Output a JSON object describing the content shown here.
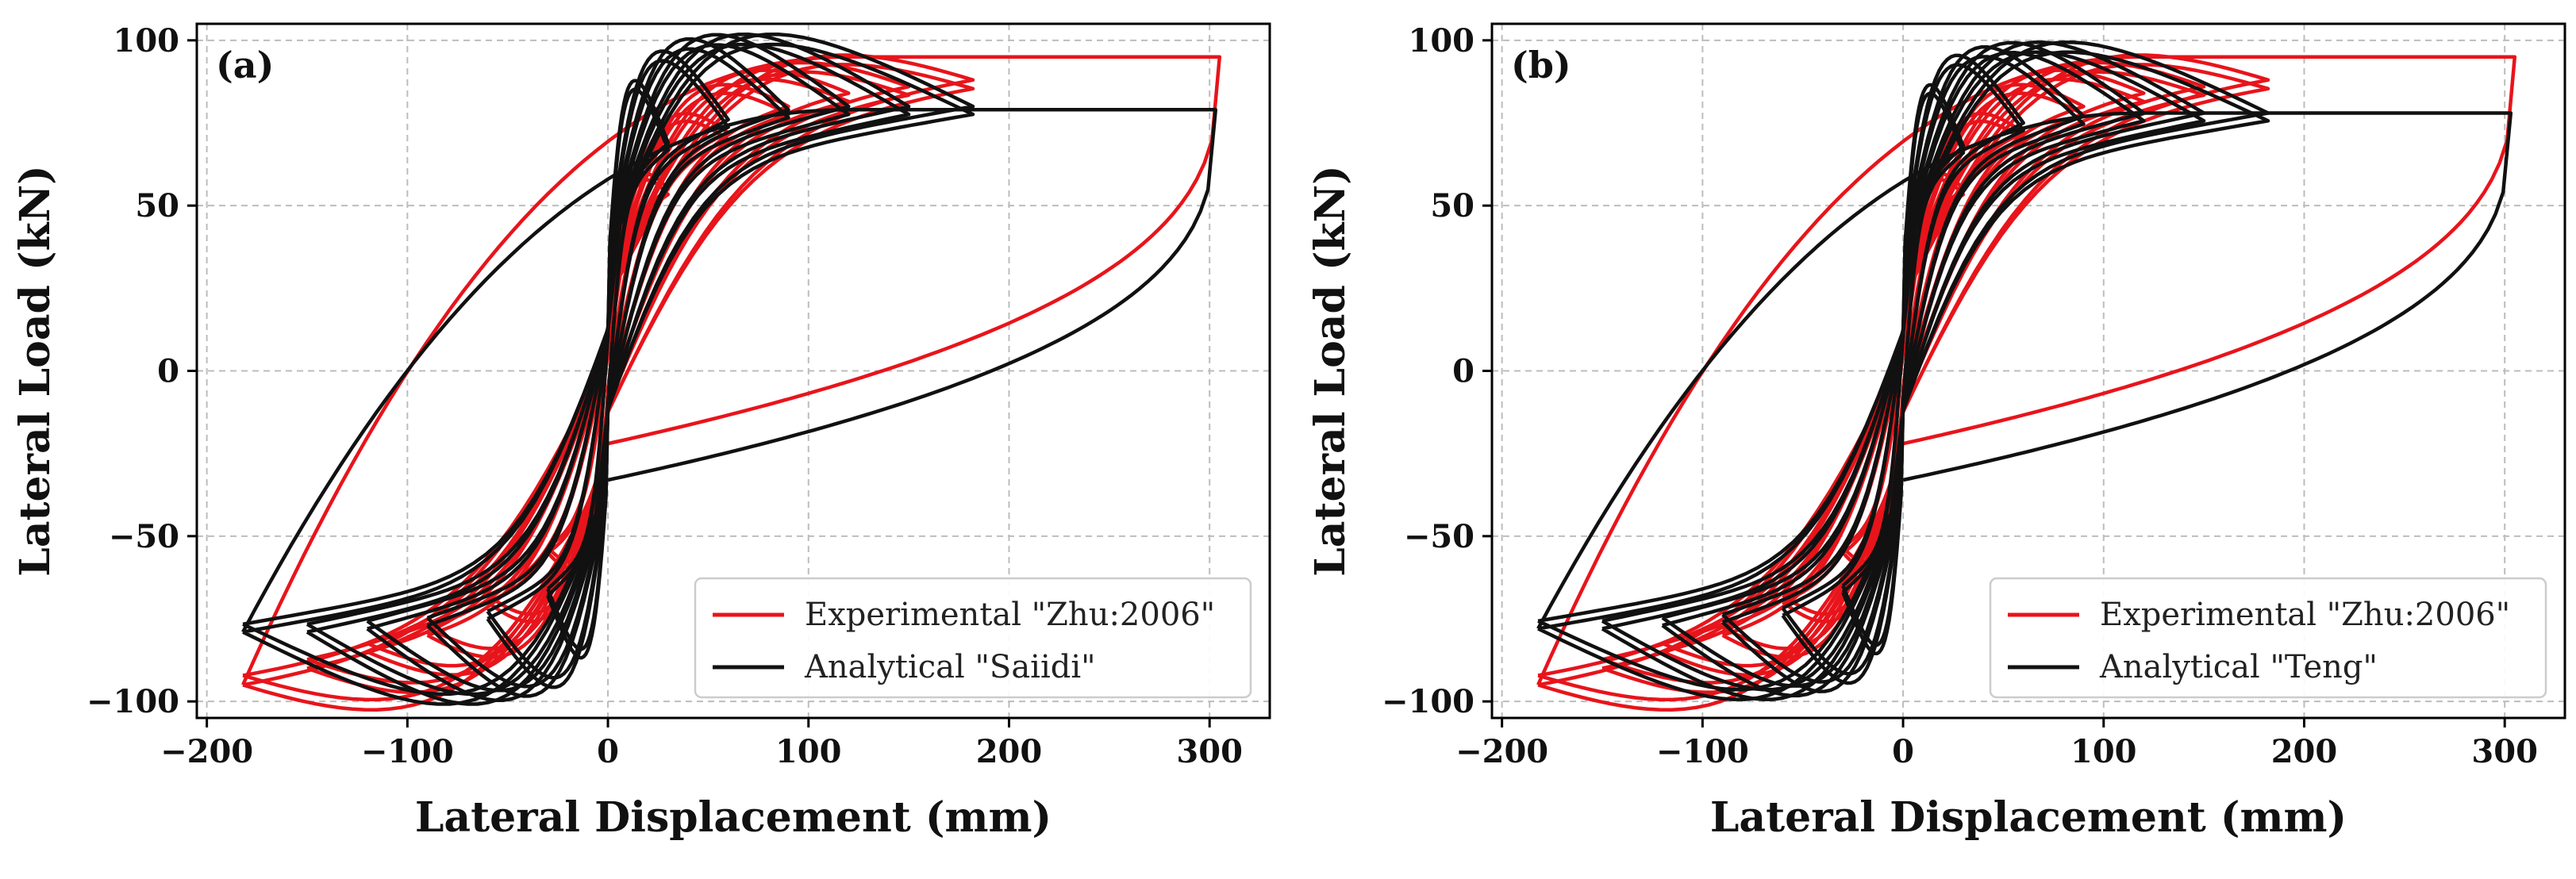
{
  "chart_data": [
    {
      "type": "line",
      "panel_label": "(a)",
      "xlabel": "Lateral Displacement (mm)",
      "ylabel": "Lateral Load (kN)",
      "xlim": [
        -205,
        330
      ],
      "ylim": [
        -105,
        105
      ],
      "xticks": [
        -200,
        -100,
        0,
        100,
        200,
        300
      ],
      "yticks": [
        -100,
        -50,
        0,
        50,
        100
      ],
      "xtick_labels": [
        "−200",
        "−100",
        "0",
        "100",
        "200",
        "300"
      ],
      "ytick_labels": [
        "−100",
        "−50",
        "0",
        "50",
        "100"
      ],
      "grid": true,
      "legend_position": "lower-right",
      "series": [
        {
          "name": "Experimental \"Zhu:2006\"",
          "color": "#e8141b",
          "cycles": [
            {
              "d": 30,
              "fp": 55,
              "fn": -55,
              "k": 0.9
            },
            {
              "d": 60,
              "fp": 72,
              "fn": -70,
              "k": 0.9
            },
            {
              "d": 90,
              "fp": 80,
              "fn": -80,
              "k": 0.9
            },
            {
              "d": 120,
              "fp": 84,
              "fn": -85,
              "k": 0.9
            },
            {
              "d": 150,
              "fp": 86,
              "fn": -90,
              "k": 0.9
            },
            {
              "d": 182,
              "fp": 88,
              "fn": -95,
              "k": 0.9
            }
          ],
          "final_push": {
            "dmax": 305,
            "fmax": 95,
            "return_force": -22
          }
        },
        {
          "name": "Analytical \"Saiidi\"",
          "color": "#111111",
          "cycles": [
            {
              "d": 30,
              "fp": 69,
              "fn": -68,
              "k": 1.4
            },
            {
              "d": 60,
              "fp": 76,
              "fn": -75,
              "k": 1.4
            },
            {
              "d": 90,
              "fp": 79,
              "fn": -77,
              "k": 1.4
            },
            {
              "d": 120,
              "fp": 80,
              "fn": -78,
              "k": 1.4
            },
            {
              "d": 150,
              "fp": 80,
              "fn": -79,
              "k": 1.4
            },
            {
              "d": 182,
              "fp": 80,
              "fn": -79,
              "k": 1.4
            }
          ],
          "final_push": {
            "dmax": 303,
            "fmax": 79,
            "return_force": -33
          }
        }
      ]
    },
    {
      "type": "line",
      "panel_label": "(b)",
      "xlabel": "Lateral Displacement (mm)",
      "ylabel": "Lateral Load (kN)",
      "xlim": [
        -205,
        330
      ],
      "ylim": [
        -105,
        105
      ],
      "xticks": [
        -200,
        -100,
        0,
        100,
        200,
        300
      ],
      "yticks": [
        -100,
        -50,
        0,
        50,
        100
      ],
      "xtick_labels": [
        "−200",
        "−100",
        "0",
        "100",
        "200",
        "300"
      ],
      "ytick_labels": [
        "−100",
        "−50",
        "0",
        "50",
        "100"
      ],
      "grid": true,
      "legend_position": "lower-right",
      "series": [
        {
          "name": "Experimental \"Zhu:2006\"",
          "color": "#e8141b",
          "cycles": [
            {
              "d": 30,
              "fp": 55,
              "fn": -55,
              "k": 0.9
            },
            {
              "d": 60,
              "fp": 72,
              "fn": -70,
              "k": 0.9
            },
            {
              "d": 90,
              "fp": 80,
              "fn": -80,
              "k": 0.9
            },
            {
              "d": 120,
              "fp": 84,
              "fn": -85,
              "k": 0.9
            },
            {
              "d": 150,
              "fp": 86,
              "fn": -90,
              "k": 0.9
            },
            {
              "d": 182,
              "fp": 88,
              "fn": -95,
              "k": 0.9
            }
          ],
          "final_push": {
            "dmax": 305,
            "fmax": 95,
            "return_force": -22
          }
        },
        {
          "name": "Analytical \"Teng\"",
          "color": "#111111",
          "cycles": [
            {
              "d": 30,
              "fp": 68,
              "fn": -67,
              "k": 1.4
            },
            {
              "d": 60,
              "fp": 75,
              "fn": -74,
              "k": 1.4
            },
            {
              "d": 90,
              "fp": 77,
              "fn": -76,
              "k": 1.4
            },
            {
              "d": 120,
              "fp": 78,
              "fn": -77,
              "k": 1.4
            },
            {
              "d": 150,
              "fp": 78,
              "fn": -78,
              "k": 1.4
            },
            {
              "d": 182,
              "fp": 78,
              "fn": -78,
              "k": 1.4
            }
          ],
          "final_push": {
            "dmax": 303,
            "fmax": 78,
            "return_force": -33
          }
        }
      ]
    }
  ]
}
